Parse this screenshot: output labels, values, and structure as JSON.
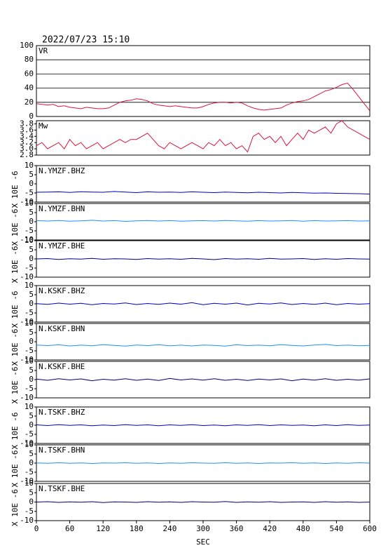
{
  "chart_data": [
    {
      "type": "line",
      "title": "2022/07/23 15:10",
      "xlim": [
        0,
        600
      ],
      "ylim": [
        0,
        100
      ],
      "yticks": [
        0,
        20,
        40,
        60,
        80,
        100
      ],
      "grid": true,
      "x": [
        0,
        10,
        20,
        30,
        40,
        50,
        60,
        70,
        80,
        90,
        100,
        110,
        120,
        130,
        140,
        150,
        160,
        170,
        180,
        190,
        200,
        210,
        220,
        230,
        240,
        250,
        260,
        270,
        280,
        290,
        300,
        310,
        320,
        330,
        340,
        350,
        360,
        370,
        380,
        390,
        400,
        410,
        420,
        430,
        440,
        450,
        460,
        470,
        480,
        490,
        500,
        510,
        520,
        530,
        540,
        550,
        560,
        570,
        580,
        590,
        600
      ],
      "series": [
        {
          "name": "VR",
          "color": "#dc143c",
          "values": [
            18,
            17,
            16,
            17,
            14,
            15,
            13,
            12,
            11,
            13,
            12,
            11,
            11,
            12,
            16,
            20,
            22,
            23,
            25,
            24,
            22,
            18,
            16,
            15,
            14,
            15,
            14,
            13,
            12,
            12,
            14,
            17,
            19,
            20,
            20,
            19,
            20,
            19,
            15,
            12,
            10,
            9,
            10,
            11,
            12,
            16,
            19,
            21,
            22,
            24,
            28,
            32,
            36,
            38,
            41,
            45,
            47,
            38,
            28,
            18,
            8
          ]
        }
      ]
    },
    {
      "type": "line",
      "xlim": [
        0,
        600
      ],
      "ylim": [
        2.8,
        3.9
      ],
      "yticks": [
        2.8,
        {
          "value": 3,
          "label": "3.0"
        },
        3.2,
        3.4,
        3.6,
        3.8
      ],
      "x": [
        0,
        10,
        20,
        30,
        40,
        50,
        60,
        70,
        80,
        90,
        100,
        110,
        120,
        130,
        140,
        150,
        160,
        170,
        180,
        190,
        200,
        210,
        220,
        230,
        240,
        250,
        260,
        270,
        280,
        290,
        300,
        310,
        320,
        330,
        340,
        350,
        360,
        370,
        380,
        390,
        400,
        410,
        420,
        430,
        440,
        450,
        460,
        470,
        480,
        490,
        500,
        510,
        520,
        530,
        540,
        550,
        560,
        570,
        580,
        590,
        600
      ],
      "series": [
        {
          "name": "Mw",
          "color": "#dc143c",
          "values": [
            3.1,
            3.2,
            3.0,
            3.1,
            3.2,
            3.0,
            3.3,
            3.1,
            3.2,
            3.0,
            3.1,
            3.2,
            3.0,
            3.1,
            3.2,
            3.3,
            3.2,
            3.3,
            3.3,
            3.4,
            3.5,
            3.3,
            3.1,
            3.0,
            3.2,
            3.1,
            3.0,
            3.1,
            3.2,
            3.1,
            3.0,
            3.2,
            3.1,
            3.3,
            3.1,
            3.2,
            3.0,
            3.1,
            2.9,
            3.4,
            3.5,
            3.3,
            3.4,
            3.2,
            3.4,
            3.1,
            3.3,
            3.5,
            3.3,
            3.6,
            3.5,
            3.6,
            3.7,
            3.5,
            3.8,
            3.9,
            3.7,
            3.6,
            3.5,
            3.4,
            3.3
          ]
        }
      ]
    },
    {
      "type": "line",
      "ylabel": "X 10E -6",
      "xlim": [
        0,
        600
      ],
      "ylim": [
        -10,
        10
      ],
      "yticks": [
        -10,
        -5,
        0,
        5,
        10
      ],
      "x": [
        0,
        20,
        40,
        60,
        80,
        100,
        120,
        140,
        160,
        180,
        200,
        220,
        240,
        260,
        280,
        300,
        320,
        340,
        360,
        380,
        400,
        420,
        440,
        460,
        480,
        500,
        520,
        540,
        560,
        580,
        600
      ],
      "series": [
        {
          "name": "N.YMZF.BHZ",
          "color": "#0000cc",
          "values": [
            -4.6,
            -4.5,
            -4.4,
            -4.7,
            -4.3,
            -4.5,
            -4.6,
            -4.2,
            -4.5,
            -4.8,
            -4.4,
            -4.6,
            -4.5,
            -4.7,
            -4.4,
            -4.6,
            -4.8,
            -4.5,
            -4.7,
            -4.9,
            -4.6,
            -4.8,
            -5.0,
            -4.7,
            -4.9,
            -5.1,
            -5.0,
            -5.2,
            -5.3,
            -5.4,
            -5.6
          ]
        }
      ]
    },
    {
      "type": "line",
      "ylabel": "X 10E -6",
      "xlim": [
        0,
        600
      ],
      "ylim": [
        -10,
        10
      ],
      "yticks": [
        -10,
        -5,
        0,
        5,
        10
      ],
      "x": [
        0,
        20,
        40,
        60,
        80,
        100,
        120,
        140,
        160,
        180,
        200,
        220,
        240,
        260,
        280,
        300,
        320,
        340,
        360,
        380,
        400,
        420,
        440,
        460,
        480,
        500,
        520,
        540,
        560,
        580,
        600
      ],
      "series": [
        {
          "name": "N.YMZF.BHN",
          "color": "#1e90ff",
          "values": [
            0.6,
            0.4,
            0.7,
            0.3,
            0.5,
            0.8,
            0.4,
            0.6,
            0.2,
            0.5,
            0.7,
            0.4,
            0.6,
            0.3,
            0.5,
            0.6,
            0.4,
            0.7,
            0.5,
            0.3,
            0.6,
            0.4,
            0.5,
            0.7,
            0.3,
            0.6,
            0.4,
            0.5,
            0.6,
            0.4,
            0.5
          ]
        }
      ]
    },
    {
      "type": "line",
      "ylabel": "X 10E -6",
      "xlim": [
        0,
        600
      ],
      "ylim": [
        -10,
        10
      ],
      "yticks": [
        -10,
        -5,
        0,
        5,
        10
      ],
      "x": [
        0,
        20,
        40,
        60,
        80,
        100,
        120,
        140,
        160,
        180,
        200,
        220,
        240,
        260,
        280,
        300,
        320,
        340,
        360,
        380,
        400,
        420,
        440,
        460,
        480,
        500,
        520,
        540,
        560,
        580,
        600
      ],
      "series": [
        {
          "name": "N.YMZF.BHE",
          "color": "#000080",
          "values": [
            0.0,
            0.2,
            -0.3,
            0.1,
            -0.1,
            0.3,
            -0.2,
            0.1,
            0.0,
            -0.3,
            0.2,
            -0.1,
            0.1,
            -0.2,
            0.3,
            0.0,
            -0.4,
            0.2,
            -0.1,
            0.1,
            -0.2,
            0.3,
            -0.1,
            0.0,
            0.2,
            -0.3,
            0.1,
            -0.2,
            0.2,
            0.0,
            -0.1
          ]
        }
      ]
    },
    {
      "type": "line",
      "ylabel": "X 10E -6",
      "xlim": [
        0,
        600
      ],
      "ylim": [
        -10,
        10
      ],
      "yticks": [
        -10,
        -5,
        0,
        5,
        10
      ],
      "x": [
        0,
        20,
        40,
        60,
        80,
        100,
        120,
        140,
        160,
        180,
        200,
        220,
        240,
        260,
        280,
        300,
        320,
        340,
        360,
        380,
        400,
        420,
        440,
        460,
        480,
        500,
        520,
        540,
        560,
        580,
        600
      ],
      "series": [
        {
          "name": "N.KSKF.BHZ",
          "color": "#0000cc",
          "values": [
            0.1,
            -0.3,
            0.4,
            -0.2,
            0.3,
            -0.5,
            0.2,
            -0.1,
            0.5,
            -0.4,
            0.2,
            -0.3,
            0.4,
            -0.2,
            0.6,
            -0.5,
            0.3,
            -0.2,
            0.4,
            -0.6,
            0.3,
            -0.1,
            0.5,
            -0.4,
            0.2,
            -0.3,
            0.4,
            -0.5,
            0.2,
            -0.2,
            0.1
          ]
        }
      ]
    },
    {
      "type": "line",
      "ylabel": "X 10E -6",
      "xlim": [
        0,
        600
      ],
      "ylim": [
        -10,
        10
      ],
      "yticks": [
        -10,
        -5,
        0,
        5,
        10
      ],
      "x": [
        0,
        20,
        40,
        60,
        80,
        100,
        120,
        140,
        160,
        180,
        200,
        220,
        240,
        260,
        280,
        300,
        320,
        340,
        360,
        380,
        400,
        420,
        440,
        460,
        480,
        500,
        520,
        540,
        560,
        580,
        600
      ],
      "series": [
        {
          "name": "N.KSKF.BHN",
          "color": "#1e90ff",
          "values": [
            -1.8,
            -2.1,
            -1.7,
            -2.3,
            -1.9,
            -2.2,
            -1.6,
            -2.0,
            -2.4,
            -1.8,
            -2.1,
            -1.7,
            -2.2,
            -1.9,
            -2.3,
            -1.8,
            -2.0,
            -2.4,
            -1.7,
            -2.1,
            -1.9,
            -2.2,
            -1.6,
            -2.0,
            -2.3,
            -1.8,
            -1.5,
            -2.1,
            -1.9,
            -2.2,
            -2.0
          ]
        }
      ]
    },
    {
      "type": "line",
      "ylabel": "X 10E -6",
      "xlim": [
        0,
        600
      ],
      "ylim": [
        -10,
        10
      ],
      "yticks": [
        -10,
        -5,
        0,
        5,
        10
      ],
      "x": [
        0,
        20,
        40,
        60,
        80,
        100,
        120,
        140,
        160,
        180,
        200,
        220,
        240,
        260,
        280,
        300,
        320,
        340,
        360,
        380,
        400,
        420,
        440,
        460,
        480,
        500,
        520,
        540,
        560,
        580,
        600
      ],
      "series": [
        {
          "name": "N.KSKF.BHE",
          "color": "#000080",
          "values": [
            0.3,
            -0.4,
            0.5,
            -0.2,
            0.4,
            -0.6,
            0.2,
            -0.3,
            0.5,
            -0.4,
            0.3,
            -0.5,
            0.6,
            -0.2,
            0.4,
            -0.3,
            0.5,
            -0.4,
            0.2,
            -0.5,
            0.3,
            -0.2,
            0.4,
            -0.6,
            0.3,
            -0.3,
            0.5,
            -0.4,
            0.2,
            -0.3,
            0.4
          ]
        }
      ]
    },
    {
      "type": "line",
      "ylabel": "X 10E -6",
      "xlim": [
        0,
        600
      ],
      "ylim": [
        -10,
        10
      ],
      "yticks": [
        -10,
        -5,
        0,
        5,
        10
      ],
      "x": [
        0,
        20,
        40,
        60,
        80,
        100,
        120,
        140,
        160,
        180,
        200,
        220,
        240,
        260,
        280,
        300,
        320,
        340,
        360,
        380,
        400,
        420,
        440,
        460,
        480,
        500,
        520,
        540,
        560,
        580,
        600
      ],
      "series": [
        {
          "name": "N.TSKF.BHZ",
          "color": "#0000cc",
          "values": [
            0.2,
            -0.2,
            0.3,
            -0.1,
            0.2,
            -0.3,
            0.1,
            -0.2,
            0.3,
            -0.1,
            0.2,
            -0.3,
            0.2,
            -0.1,
            0.3,
            -0.2,
            0.1,
            -0.3,
            0.2,
            -0.1,
            0.3,
            -0.2,
            0.2,
            -0.1,
            0.1,
            -0.3,
            0.2,
            -0.2,
            0.3,
            -0.1,
            0.1
          ]
        }
      ]
    },
    {
      "type": "line",
      "ylabel": "X 10E -6",
      "xlim": [
        0,
        600
      ],
      "ylim": [
        -10,
        10
      ],
      "yticks": [
        -10,
        -5,
        0,
        5,
        10
      ],
      "x": [
        0,
        20,
        40,
        60,
        80,
        100,
        120,
        140,
        160,
        180,
        200,
        220,
        240,
        260,
        280,
        300,
        320,
        340,
        360,
        380,
        400,
        420,
        440,
        460,
        480,
        500,
        520,
        540,
        560,
        580,
        600
      ],
      "series": [
        {
          "name": "N.TSKF.BHN",
          "color": "#1e90ff",
          "values": [
            0.1,
            -0.1,
            0.2,
            -0.1,
            0.1,
            -0.2,
            0.1,
            0.0,
            0.2,
            -0.1,
            0.1,
            -0.2,
            0.1,
            -0.1,
            0.2,
            0.0,
            -0.1,
            0.2,
            -0.1,
            0.1,
            -0.2,
            0.1,
            0.0,
            0.2,
            -0.1,
            0.1,
            -0.2,
            0.1,
            -0.1,
            0.2,
            0.0
          ]
        }
      ]
    },
    {
      "type": "line",
      "ylabel": "X 10E -6",
      "xlabel": "SEC",
      "xlim": [
        0,
        600
      ],
      "ylim": [
        -10,
        10
      ],
      "yticks": [
        -10,
        -5,
        0,
        5,
        10
      ],
      "xticks": [
        0,
        60,
        120,
        180,
        240,
        300,
        360,
        420,
        480,
        540,
        600
      ],
      "x": [
        0,
        20,
        40,
        60,
        80,
        100,
        120,
        140,
        160,
        180,
        200,
        220,
        240,
        260,
        280,
        300,
        320,
        340,
        360,
        380,
        400,
        420,
        440,
        460,
        480,
        500,
        520,
        540,
        560,
        580,
        600
      ],
      "series": [
        {
          "name": "N.TSKF.BHE",
          "color": "#000080",
          "values": [
            0.0,
            0.2,
            -0.2,
            0.1,
            -0.1,
            0.2,
            -0.3,
            0.1,
            0.0,
            -0.2,
            0.2,
            -0.1,
            0.1,
            -0.2,
            0.2,
            0.0,
            -0.1,
            0.3,
            -0.2,
            0.1,
            -0.1,
            0.2,
            -0.2,
            0.0,
            0.1,
            -0.2,
            0.2,
            -0.1,
            0.1,
            -0.2,
            0.0
          ]
        }
      ]
    }
  ]
}
